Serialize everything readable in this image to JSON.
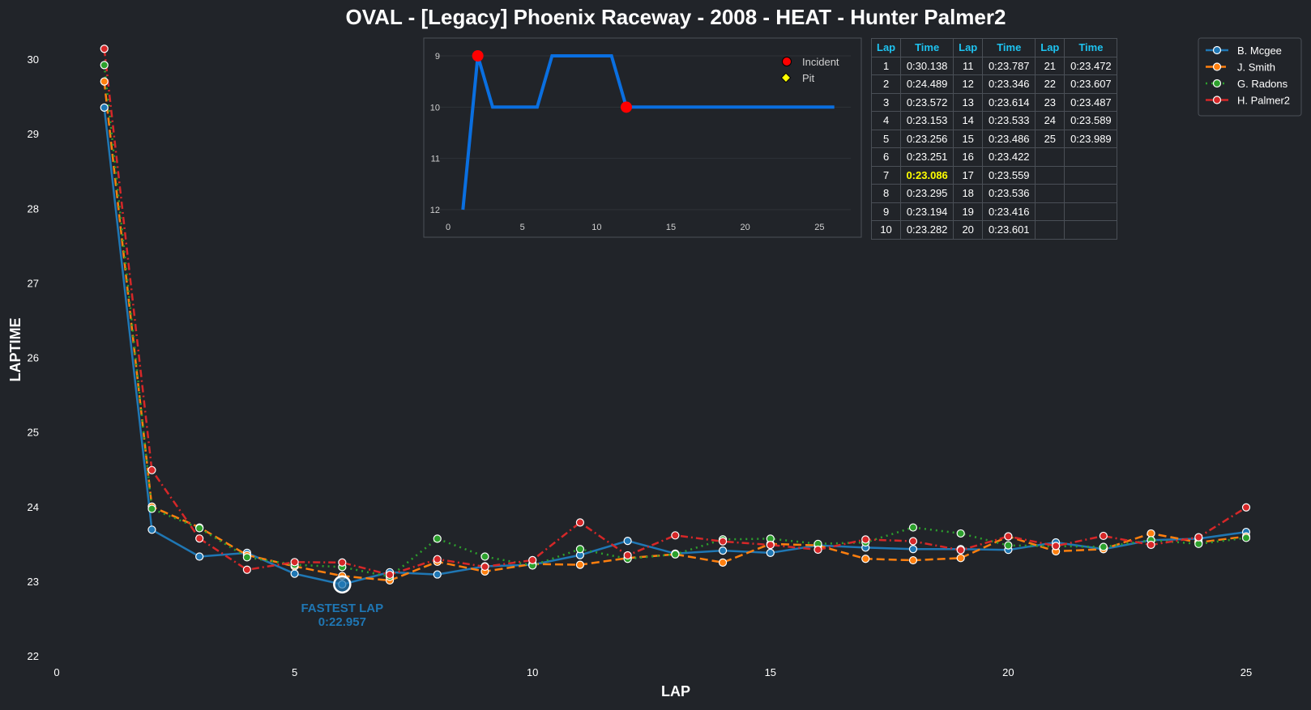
{
  "chart_data": [
    {
      "type": "line",
      "title": "OVAL - [Legacy] Phoenix Raceway - 2008 - HEAT - Hunter Palmer2",
      "xlabel": "LAP",
      "ylabel": "LAPTIME",
      "xlim": [
        0,
        25
      ],
      "ylim": [
        22,
        30.3
      ],
      "x_ticks": [
        "0",
        "5",
        "10",
        "15",
        "20",
        "25"
      ],
      "y_ticks": [
        "22",
        "23",
        "24",
        "25",
        "26",
        "27",
        "28",
        "29",
        "30"
      ],
      "legend_position": "top-right",
      "grid": false,
      "x": [
        1,
        2,
        3,
        4,
        5,
        6,
        7,
        8,
        9,
        10,
        11,
        12,
        13,
        14,
        15,
        16,
        17,
        18,
        19,
        20,
        21,
        22,
        23,
        24,
        25
      ],
      "series": [
        {
          "name": "B. Mcgee",
          "color": "#1f77b4",
          "style": "solid",
          "values": [
            29.35,
            23.69,
            23.33,
            23.38,
            23.1,
            22.957,
            23.12,
            23.09,
            23.2,
            23.22,
            23.35,
            23.54,
            23.37,
            23.41,
            23.38,
            23.48,
            23.45,
            23.43,
            23.43,
            23.42,
            23.52,
            23.43,
            23.55,
            23.57,
            23.66
          ]
        },
        {
          "name": "J. Smith",
          "color": "#ff7f0e",
          "style": "dashed",
          "values": [
            29.7,
            24.0,
            23.72,
            23.35,
            23.2,
            23.07,
            23.01,
            23.26,
            23.13,
            23.23,
            23.22,
            23.31,
            23.36,
            23.25,
            23.5,
            23.48,
            23.3,
            23.28,
            23.31,
            23.6,
            23.4,
            23.43,
            23.64,
            23.52,
            23.6
          ]
        },
        {
          "name": "G. Radons",
          "color": "#2ca02c",
          "style": "dotted",
          "values": [
            29.92,
            23.97,
            23.71,
            23.32,
            23.22,
            23.19,
            23.06,
            23.57,
            23.33,
            23.21,
            23.43,
            23.3,
            23.36,
            23.56,
            23.57,
            23.5,
            23.52,
            23.72,
            23.64,
            23.48,
            23.47,
            23.46,
            23.55,
            23.5,
            23.58
          ]
        },
        {
          "name": "H. Palmer2",
          "color": "#d62728",
          "style": "dashdot",
          "values": [
            30.138,
            24.489,
            23.572,
            23.153,
            23.256,
            23.251,
            23.086,
            23.295,
            23.194,
            23.282,
            23.787,
            23.346,
            23.614,
            23.533,
            23.486,
            23.422,
            23.559,
            23.536,
            23.416,
            23.601,
            23.472,
            23.607,
            23.487,
            23.589,
            23.989
          ]
        }
      ],
      "annotation": {
        "label": "FASTEST LAP",
        "value": "0:22.957",
        "x": 6,
        "y": 22.957,
        "color": "#1f77b4"
      }
    },
    {
      "type": "line",
      "title": "",
      "x_ticks": [
        "0",
        "5",
        "10",
        "15",
        "20",
        "25"
      ],
      "y_ticks": [
        "9",
        "10",
        "11",
        "12"
      ],
      "xlim": [
        0,
        27
      ],
      "ylim": [
        12,
        9
      ],
      "y_inverted": true,
      "series": [
        {
          "name": "",
          "color": "#0a6fe0",
          "x": [
            1,
            2,
            3,
            4,
            5,
            6,
            7,
            8,
            9,
            10,
            11,
            12,
            13,
            14,
            15,
            16,
            17,
            18,
            19,
            20,
            21,
            22,
            23,
            24,
            25,
            26
          ],
          "values": [
            12,
            9,
            10,
            10,
            10,
            10,
            9,
            9,
            9,
            9,
            9,
            10,
            10,
            10,
            10,
            10,
            10,
            10,
            10,
            10,
            10,
            10,
            10,
            10,
            10,
            10
          ]
        }
      ],
      "markers": [
        {
          "type": "Incident",
          "x": 2,
          "y": 9
        },
        {
          "type": "Incident",
          "x": 12,
          "y": 10
        }
      ],
      "legend": [
        {
          "label": "Incident",
          "color": "#ff0000",
          "shape": "circle"
        },
        {
          "label": "Pit",
          "color": "#ffff00",
          "shape": "diamond"
        }
      ]
    },
    {
      "type": "table",
      "headers": [
        "Lap",
        "Time",
        "Lap",
        "Time",
        "Lap",
        "Time"
      ],
      "highlight_color": "#ffff00",
      "rows": [
        {
          "cells": [
            "1",
            "0:30.138",
            "11",
            "0:23.787",
            "21",
            "0:23.472"
          ]
        },
        {
          "cells": [
            "2",
            "0:24.489",
            "12",
            "0:23.346",
            "22",
            "0:23.607"
          ]
        },
        {
          "cells": [
            "3",
            "0:23.572",
            "13",
            "0:23.614",
            "23",
            "0:23.487"
          ]
        },
        {
          "cells": [
            "4",
            "0:23.153",
            "14",
            "0:23.533",
            "24",
            "0:23.589"
          ]
        },
        {
          "cells": [
            "5",
            "0:23.256",
            "15",
            "0:23.486",
            "25",
            "0:23.989"
          ]
        },
        {
          "cells": [
            "6",
            "0:23.251",
            "16",
            "0:23.422",
            "",
            ""
          ]
        },
        {
          "cells": [
            "7",
            "0:23.086",
            "17",
            "0:23.559",
            "",
            ""
          ],
          "best_col": 1
        },
        {
          "cells": [
            "8",
            "0:23.295",
            "18",
            "0:23.536",
            "",
            ""
          ]
        },
        {
          "cells": [
            "9",
            "0:23.194",
            "19",
            "0:23.416",
            "",
            ""
          ]
        },
        {
          "cells": [
            "10",
            "0:23.282",
            "20",
            "0:23.601",
            "",
            ""
          ]
        }
      ]
    }
  ]
}
